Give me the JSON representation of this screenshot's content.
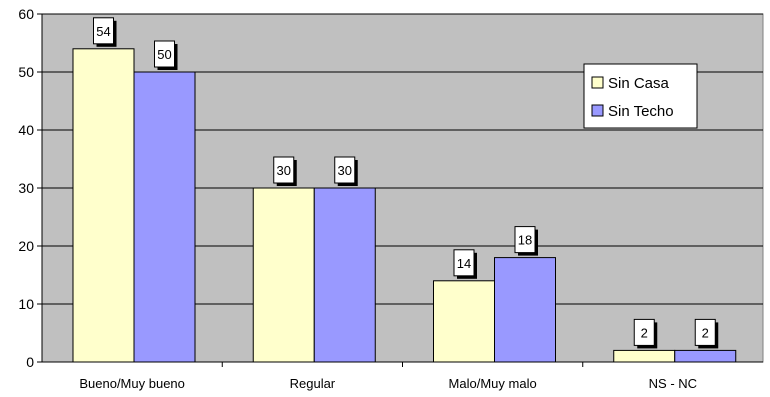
{
  "chart_data": {
    "type": "bar",
    "categories": [
      "Bueno/Muy bueno",
      "Regular",
      "Malo/Muy malo",
      "NS - NC"
    ],
    "series": [
      {
        "name": "Sin Casa",
        "values": [
          54,
          30,
          14,
          2
        ],
        "color": "#ffffcc"
      },
      {
        "name": "Sin Techo",
        "values": [
          50,
          30,
          18,
          2
        ],
        "color": "#9999ff"
      }
    ],
    "y_ticks": [
      "0",
      "10",
      "20",
      "30",
      "40",
      "50",
      "60"
    ],
    "ylim": [
      0,
      60
    ],
    "grid": true,
    "plot_background": "#c0c0c0",
    "legend_position": "right",
    "data_labels": true
  }
}
